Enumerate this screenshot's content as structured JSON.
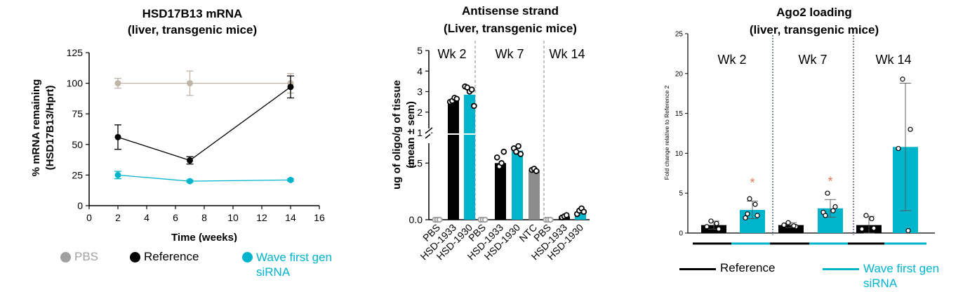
{
  "colors": {
    "pbs": "#bfb6a8",
    "pbs_legend": "#a0a0a0",
    "reference": "#000000",
    "wave": "#00b4cc",
    "ntc": "#8c8c8c",
    "asterisk": "#e8735a",
    "divider": "#1f3a6b"
  },
  "chart_data": [
    {
      "type": "line",
      "title": "HSD17B13 mRNA",
      "subtitle": "(liver, transgenic mice)",
      "xlabel": "Time (weeks)",
      "ylabel": "% mRNA remaining",
      "ylabel2": "(HSD17B13/Hprt)",
      "xlim": [
        0,
        16
      ],
      "ylim": [
        0,
        125
      ],
      "xticks": [
        "0",
        "2",
        "4",
        "6",
        "8",
        "10",
        "12",
        "14",
        "16"
      ],
      "yticks": [
        "0",
        "25",
        "50",
        "75",
        "100",
        "125"
      ],
      "series": [
        {
          "name": "PBS",
          "x": [
            2,
            7,
            14
          ],
          "y": [
            100,
            100,
            100
          ],
          "err": [
            4,
            10,
            8
          ]
        },
        {
          "name": "Reference",
          "x": [
            2,
            7,
            14
          ],
          "y": [
            56,
            37,
            97
          ],
          "err": [
            10,
            3,
            9
          ]
        },
        {
          "name": "Wave first gen siRNA",
          "x": [
            2,
            7,
            14
          ],
          "y": [
            25,
            20,
            21
          ],
          "err": [
            3,
            1,
            1
          ]
        }
      ]
    },
    {
      "type": "bar",
      "title": "Antisense strand",
      "subtitle": "(Liver, transgenic mice)",
      "ylabel": "ug of oligo/g of tissue",
      "ylabel2": "(mean ± sem)",
      "axis_break": "1",
      "ylim_lower": [
        0,
        0.75
      ],
      "ylim_upper": [
        1,
        5
      ],
      "yticks_lower": [
        "0.0",
        "0.5"
      ],
      "yticks_upper": [
        "2",
        "3",
        "4",
        "5"
      ],
      "groups": [
        "Wk 2",
        "Wk 7",
        "Wk 14"
      ],
      "bars": [
        {
          "label": "PBS",
          "group": "Wk 2",
          "value": 0,
          "points": [
            0,
            0,
            0
          ]
        },
        {
          "label": "HSD-1933",
          "group": "Wk 2",
          "value": 2.6,
          "points": [
            2.5,
            2.55,
            2.7,
            2.65
          ]
        },
        {
          "label": "HSD-1930",
          "group": "Wk 2",
          "value": 2.85,
          "points": [
            3.25,
            3.2,
            3.0,
            3.1,
            2.3
          ]
        },
        {
          "label": "PBS",
          "group": "Wk 7",
          "value": 0,
          "points": [
            0,
            0,
            0
          ]
        },
        {
          "label": "HSD-1933",
          "group": "Wk 7",
          "value": 0.5,
          "points": [
            0.55,
            0.47,
            0.5,
            0.6
          ]
        },
        {
          "label": "HSD-1930",
          "group": "Wk 7",
          "value": 0.61,
          "points": [
            0.63,
            0.6,
            0.65,
            0.58
          ]
        },
        {
          "label": "NTC",
          "group": "Wk 7",
          "value": 0.44,
          "points": [
            0.44,
            0.45,
            0.43
          ]
        },
        {
          "label": "PBS",
          "group": "Wk 14",
          "value": 0,
          "points": [
            0,
            0,
            0
          ]
        },
        {
          "label": "HSD-1933",
          "group": "Wk 14",
          "value": 0.03,
          "points": [
            0.02,
            0.03,
            0.04
          ]
        },
        {
          "label": "HSD-1930",
          "group": "Wk 14",
          "value": 0.06,
          "points": [
            0.05,
            0.08,
            0.1,
            0.07
          ]
        }
      ]
    },
    {
      "type": "bar",
      "title": "Ago2 loading",
      "subtitle": "(liver, transgenic mice)",
      "ylabel": "Fold change relative to Reference 2",
      "ylim": [
        0,
        25
      ],
      "yticks": [
        "0",
        "5",
        "10",
        "15",
        "20",
        "25"
      ],
      "groups": [
        "Wk 2",
        "Wk 7",
        "Wk 14"
      ],
      "bars": [
        {
          "group": "Wk 2",
          "series": "Reference",
          "value": 1.0,
          "err": 0.5,
          "points": [
            1.5,
            0.5,
            0.8,
            1.2
          ],
          "significant": false
        },
        {
          "group": "Wk 2",
          "series": "Wave first gen siRNA",
          "value": 2.9,
          "err": 1.1,
          "points": [
            4.3,
            2.2,
            1.9,
            3.6,
            2.4
          ],
          "significant": true
        },
        {
          "group": "Wk 7",
          "series": "Reference",
          "value": 1.0,
          "err": 0.3,
          "points": [
            1.3,
            0.8,
            1.0,
            0.9
          ],
          "significant": false
        },
        {
          "group": "Wk 7",
          "series": "Wave first gen siRNA",
          "value": 3.1,
          "err": 1.1,
          "points": [
            5.0,
            3.3,
            2.6,
            2.8,
            2.2
          ],
          "significant": true
        },
        {
          "group": "Wk 14",
          "series": "Reference",
          "value": 1.0,
          "err": 1.1,
          "points": [
            2.2,
            0.6,
            0.5,
            1.8
          ],
          "significant": false
        },
        {
          "group": "Wk 14",
          "series": "Wave first gen siRNA",
          "value": 10.8,
          "err": 8.0,
          "points": [
            19.3,
            13.0,
            10.6,
            0.3
          ],
          "significant": false
        }
      ],
      "asterisk": "*"
    }
  ],
  "legend_left": [
    {
      "label": "PBS",
      "color": "#a0a0a0"
    },
    {
      "label": "Reference",
      "color": "#000000"
    },
    {
      "label": "Wave first gen siRNA",
      "color": "#00b4cc",
      "lines": [
        "Wave first gen",
        "siRNA"
      ]
    }
  ],
  "legend_right": [
    {
      "label": "Reference",
      "color": "#000000"
    },
    {
      "label": "Wave first gen siRNA",
      "color": "#00b4cc",
      "lines": [
        "Wave first gen",
        "siRNA"
      ]
    }
  ]
}
